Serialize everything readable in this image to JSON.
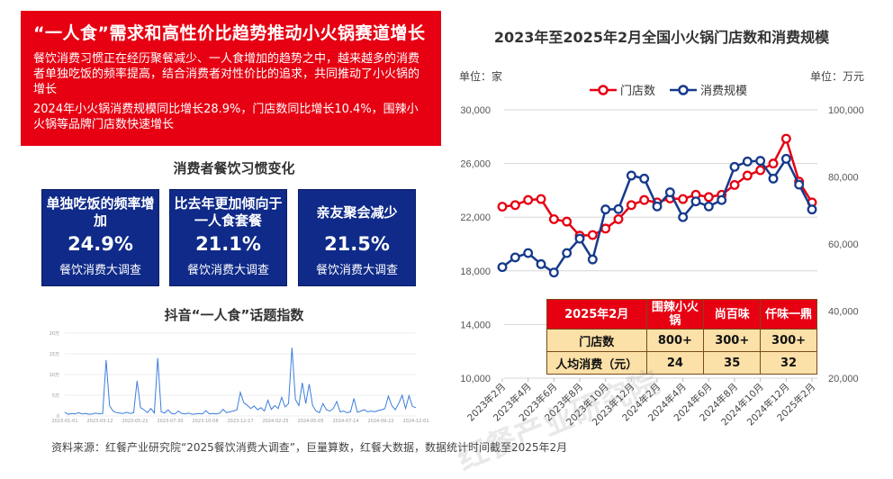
{
  "header": {
    "title": "“一人食”需求和高性价比趋势推动小火锅赛道增长",
    "para1": "餐饮消费习惯正在经历聚餐减少、一人食增加的趋势之中，越来越多的消费者单独吃饭的频率提高，结合消费者对性价比的追求，共同推动了小火锅的增长",
    "para2": "2024年小火锅消费规模同比增长28.9%，门店数同比增长10.4%，围辣小火锅等品牌门店数快速增长"
  },
  "habits": {
    "title": "消费者餐饮习惯变化",
    "cards": [
      {
        "label": "单独吃饭的频率增加",
        "value": "24.9%",
        "source": "餐饮消费大调查"
      },
      {
        "label": "比去年更加倾向于一人食套餐",
        "value": "21.1%",
        "source": "餐饮消费大调查"
      },
      {
        "label": "亲友聚会减少",
        "value": "21.5%",
        "source": "餐饮消费大调查"
      }
    ]
  },
  "watermark": "红餐产业研究院",
  "footer": "资料来源：红餐产业研究院“2025餐饮消费大调查”，巨量算数，红餐大数据，数据统计时间截至2025年2月",
  "table": {
    "headers": [
      "2025年2月",
      "围辣小火锅",
      "尚百味",
      "仟味一鼎"
    ],
    "rows": [
      [
        "门店数",
        "800+",
        "300+",
        "300+"
      ],
      [
        "人均消费（元）",
        "24",
        "35",
        "32"
      ]
    ]
  },
  "colors": {
    "red": "#e60012",
    "blue": "#163a8c"
  },
  "chart_data": [
    {
      "type": "line",
      "title": "2023年至2025年2月全国小火锅门店数和消费规模",
      "left_unit": "单位：家",
      "right_unit": "单位：万元",
      "x": [
        "2023年2月",
        "2023年3月",
        "2023年4月",
        "2023年5月",
        "2023年6月",
        "2023年7月",
        "2023年8月",
        "2023年9月",
        "2023年10月",
        "2023年11月",
        "2023年12月",
        "2024年1月",
        "2024年2月",
        "2024年3月",
        "2024年4月",
        "2024年5月",
        "2024年6月",
        "2024年7月",
        "2024年8月",
        "2024年9月",
        "2024年10月",
        "2024年11月",
        "2024年12月",
        "2025年1月",
        "2025年2月"
      ],
      "x_tick_labels": [
        "2023年2月",
        "2023年4月",
        "2023年6月",
        "2023年8月",
        "2023年10月",
        "2023年12月",
        "2024年2月",
        "2024年4月",
        "2024年6月",
        "2024年8月",
        "2024年10月",
        "2024年12月",
        "2025年2月"
      ],
      "left_ylim": [
        10000,
        30000
      ],
      "left_ticks": [
        "10,000",
        "14,000",
        "18,000",
        "22,000",
        "26,000",
        "30,000"
      ],
      "right_ylim": [
        20000,
        100000
      ],
      "right_ticks": [
        "20,000",
        "40,000",
        "60,000",
        "80,000",
        "100,000"
      ],
      "legend": "top-center",
      "series": [
        {
          "name": "门店数",
          "axis": "left",
          "color": "#e60012",
          "values": [
            22780,
            22900,
            23280,
            23350,
            21850,
            21670,
            20620,
            20670,
            21150,
            21850,
            22900,
            23280,
            23100,
            23400,
            23350,
            23670,
            23500,
            23670,
            24400,
            25100,
            25500,
            26000,
            27850,
            24650,
            23100
          ]
        },
        {
          "name": "消费规模",
          "axis": "right",
          "color": "#163a8c",
          "values": [
            53100,
            56000,
            57300,
            54000,
            51500,
            57300,
            61600,
            55400,
            70300,
            70400,
            80400,
            79500,
            71200,
            75400,
            68000,
            72700,
            71200,
            73100,
            83000,
            84600,
            84800,
            79500,
            85400,
            77700,
            70300
          ]
        }
      ]
    },
    {
      "type": "line",
      "title": "抖音“一人食”话题指数",
      "ylim": [
        0,
        200000
      ],
      "y_ticks": [
        "0",
        "5万",
        "10万",
        "15万",
        "20万"
      ],
      "x_tick_labels": [
        "2023-01-01",
        "2023-03-12",
        "2023-05-21",
        "2023-07-30",
        "2023-10-08",
        "2023-12-17",
        "2024-02-25",
        "2024-05-05",
        "2024-07-14",
        "2024-09-22",
        "2024-12-01"
      ],
      "series": [
        {
          "name": "话题指数",
          "color": "#3b7ddd",
          "values": [
            0.9,
            0.4,
            0.6,
            0.5,
            0.8,
            0.5,
            0.6,
            0.4,
            0.5,
            0.7,
            0.5,
            0.6,
            13.5,
            2.5,
            1.2,
            0.8,
            0.7,
            0.6,
            0.9,
            0.6,
            0.8,
            8.5,
            2.0,
            1.5,
            0.8,
            1.8,
            0.7,
            14,
            1.0,
            0.7,
            1.5,
            0.6,
            0.5,
            1.2,
            0.6,
            0.5,
            0.7,
            0.4,
            0.5,
            0.6,
            0.5,
            1.3,
            0.5,
            0.6,
            0.5,
            0.7,
            1.6,
            0.8,
            1.0,
            1.2,
            1.5,
            5.7,
            3.2,
            2.6,
            1.8,
            2.4,
            1.5,
            2.0,
            1.2,
            3.8,
            1.6,
            2.5,
            1.8,
            4.5,
            2.2,
            3.0,
            16.5,
            4.0,
            2.5,
            8.0,
            3.0,
            7.7,
            2.5,
            1.2,
            0.8,
            3.0,
            1.5,
            1.2,
            1.8,
            3.5,
            1.0,
            1.2,
            0.8,
            1.0,
            4.2,
            0.9,
            1.2,
            1.5,
            1.0,
            1.2,
            1.0,
            1.3,
            1.5,
            1.8,
            4.8,
            2.5,
            1.5,
            3.0,
            5.0,
            1.8,
            4.9,
            2.3,
            2.0
          ]
        }
      ]
    }
  ]
}
